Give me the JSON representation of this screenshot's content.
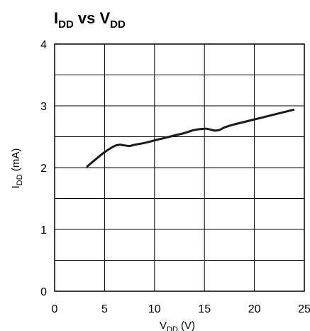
{
  "chart_data": {
    "type": "line",
    "title": {
      "main": "I",
      "sub": "DD",
      "mid": " vs V",
      "sub2": "DD"
    },
    "xlabel": {
      "main": "V",
      "sub": "DD",
      "rest": " (V)"
    },
    "ylabel": {
      "main": "I",
      "sub": "DD",
      "rest": " (mA)"
    },
    "xlim": [
      0,
      25
    ],
    "ylim": [
      0,
      4
    ],
    "x_ticks": [
      "0",
      "5",
      "10",
      "15",
      "20",
      "25"
    ],
    "y_ticks": [
      "0",
      "1",
      "2",
      "3",
      "4"
    ],
    "x_tick_values": [
      0,
      5,
      10,
      15,
      20,
      25
    ],
    "y_tick_values": [
      0,
      1,
      2,
      3,
      4
    ],
    "grid": {
      "x_step": 5,
      "y_step": 0.5,
      "on": true
    },
    "colors": {
      "line": "#1a1a1a",
      "grid": "#000000",
      "axis": "#000000"
    },
    "series": [
      {
        "x": [
          3.2,
          4,
          5,
          6,
          6.5,
          7,
          7.5,
          8,
          9,
          10,
          11,
          12,
          13,
          14,
          15,
          15.5,
          16,
          16.5,
          17,
          18,
          19,
          20,
          21,
          22,
          23,
          24
        ],
        "y": [
          2.01,
          2.12,
          2.25,
          2.35,
          2.37,
          2.36,
          2.35,
          2.37,
          2.4,
          2.44,
          2.48,
          2.52,
          2.56,
          2.61,
          2.63,
          2.62,
          2.6,
          2.61,
          2.65,
          2.7,
          2.74,
          2.78,
          2.82,
          2.86,
          2.9,
          2.94
        ]
      }
    ]
  }
}
